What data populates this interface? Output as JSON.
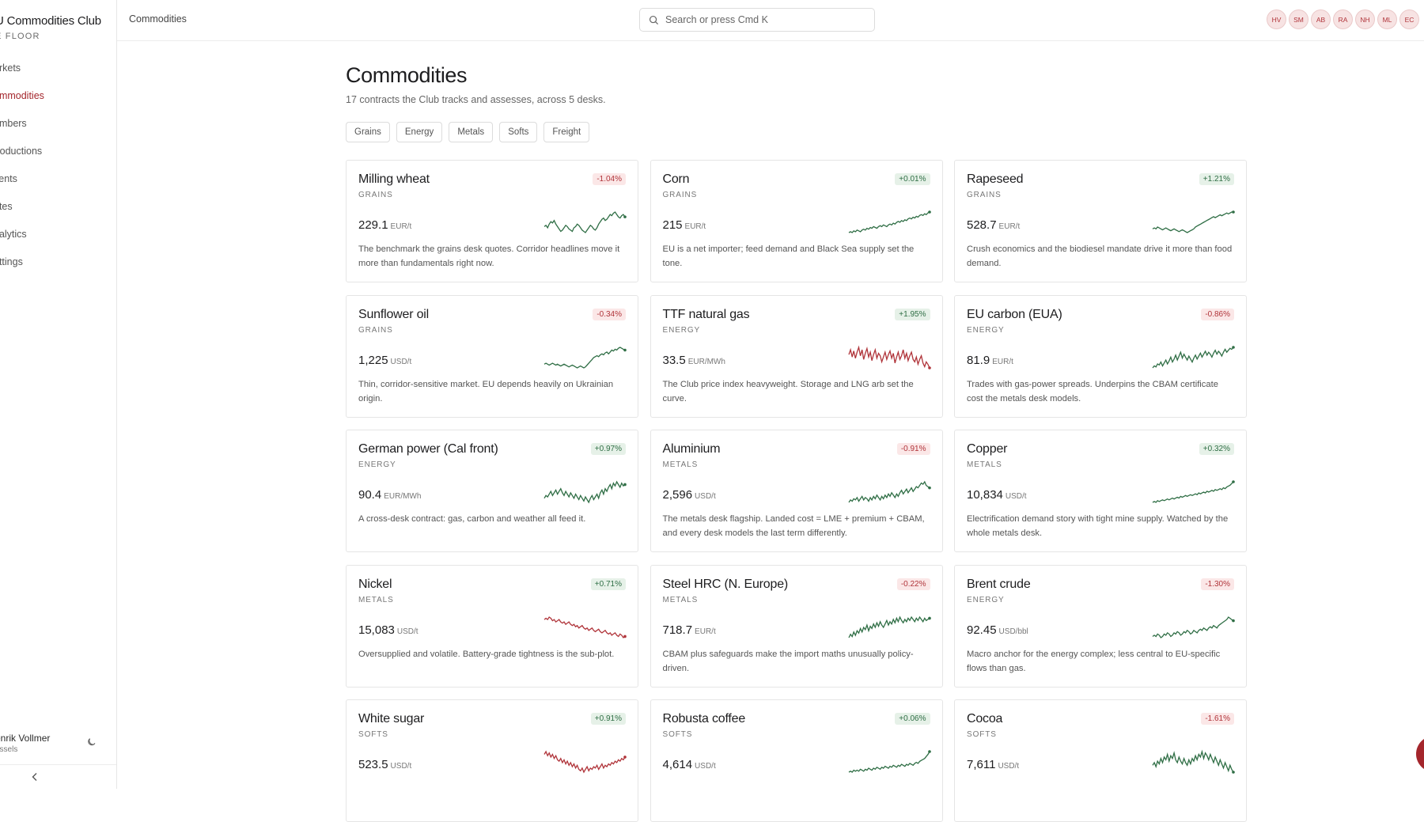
{
  "brand": {
    "title": "U Commodities Club",
    "subtitle": "E FLOOR"
  },
  "nav": [
    {
      "label": "arkets",
      "active": false
    },
    {
      "label": "ommodities",
      "active": true
    },
    {
      "label": "embers",
      "active": false
    },
    {
      "label": "troductions",
      "active": false
    },
    {
      "label": "vents",
      "active": false
    },
    {
      "label": "otes",
      "active": false
    },
    {
      "label": "nalytics",
      "active": false
    },
    {
      "label": "ettings",
      "active": false
    }
  ],
  "user": {
    "name": "enrik Vollmer",
    "location": "ussels",
    "theme_icon": "moon-icon"
  },
  "header": {
    "breadcrumb": "Commodities",
    "search_placeholder": "Search or press Cmd K",
    "avatars": [
      "HV",
      "SM",
      "AB",
      "RA",
      "NH",
      "ML",
      "EC"
    ]
  },
  "page": {
    "title": "Commodities",
    "subtitle": "17 contracts the Club tracks and assesses, across 5 desks."
  },
  "filters": [
    "Grains",
    "Energy",
    "Metals",
    "Softs",
    "Freight"
  ],
  "colors": {
    "up": "#2f6e45",
    "down": "#b0343a",
    "accent": "#a4262c"
  },
  "cards": [
    {
      "name": "Milling wheat",
      "desk": "GRAINS",
      "change": "-1.04%",
      "dir": "down",
      "price": "229.1",
      "unit": "EUR/t",
      "desc": "The benchmark the grains desk quotes. Corridor headlines move it more than fundamentals right now.",
      "spark_color": "up",
      "spark": [
        12,
        13,
        11,
        14,
        16,
        15,
        17,
        14,
        12,
        10,
        8,
        9,
        11,
        13,
        12,
        10,
        9,
        8,
        11,
        12,
        14,
        13,
        11,
        9,
        8,
        7,
        9,
        11,
        13,
        12,
        10,
        9,
        11,
        14,
        16,
        18,
        19,
        17,
        18,
        20,
        22,
        21,
        23,
        24,
        22,
        20,
        19,
        21,
        22,
        20
      ]
    },
    {
      "name": "Corn",
      "desk": "GRAINS",
      "change": "+0.01%",
      "dir": "up",
      "price": "215",
      "unit": "EUR/t",
      "desc": "EU is a net importer; feed demand and Black Sea supply set the tone.",
      "spark_color": "up",
      "spark": [
        5,
        6,
        5,
        7,
        6,
        8,
        7,
        6,
        8,
        9,
        8,
        10,
        9,
        11,
        10,
        12,
        11,
        10,
        12,
        13,
        12,
        14,
        13,
        12,
        14,
        15,
        14,
        16,
        15,
        17,
        18,
        17,
        19,
        18,
        20,
        19,
        21,
        22,
        21,
        23,
        22,
        24,
        23,
        25,
        26,
        25,
        27,
        26,
        28,
        29
      ]
    },
    {
      "name": "Rapeseed",
      "desk": "GRAINS",
      "change": "+1.21%",
      "dir": "up",
      "price": "528.7",
      "unit": "EUR/t",
      "desc": "Crush economics and the biodiesel mandate drive it more than food demand.",
      "spark_color": "up",
      "spark": [
        10,
        11,
        10,
        12,
        11,
        10,
        9,
        10,
        11,
        10,
        9,
        8,
        9,
        10,
        9,
        8,
        7,
        8,
        9,
        8,
        7,
        6,
        7,
        8,
        9,
        10,
        12,
        13,
        14,
        15,
        16,
        17,
        18,
        19,
        20,
        21,
        22,
        23,
        22,
        23,
        24,
        25,
        24,
        25,
        26,
        27,
        26,
        27,
        28,
        28
      ]
    },
    {
      "name": "Sunflower oil",
      "desk": "GRAINS",
      "change": "-0.34%",
      "dir": "down",
      "price": "1,225",
      "unit": "USD/t",
      "desc": "Thin, corridor-sensitive market. EU depends heavily on Ukrainian origin.",
      "spark_color": "up",
      "spark": [
        9,
        10,
        9,
        8,
        9,
        10,
        9,
        8,
        9,
        8,
        7,
        8,
        9,
        8,
        7,
        6,
        7,
        8,
        7,
        6,
        5,
        6,
        7,
        6,
        5,
        6,
        8,
        10,
        12,
        14,
        16,
        17,
        18,
        17,
        19,
        20,
        19,
        21,
        22,
        20,
        22,
        24,
        23,
        25,
        24,
        26,
        27,
        26,
        25,
        24
      ]
    },
    {
      "name": "TTF natural gas",
      "desk": "ENERGY",
      "change": "+1.95%",
      "dir": "up",
      "price": "33.5",
      "unit": "EUR/MWh",
      "desc": "The Club price index heavyweight. Storage and LNG arb set the curve.",
      "spark_color": "down",
      "spark": [
        20,
        24,
        18,
        23,
        17,
        22,
        26,
        19,
        24,
        16,
        21,
        25,
        18,
        22,
        15,
        20,
        24,
        17,
        21,
        19,
        14,
        18,
        22,
        16,
        20,
        23,
        17,
        21,
        13,
        18,
        22,
        16,
        19,
        24,
        17,
        21,
        15,
        19,
        22,
        16,
        14,
        18,
        12,
        16,
        19,
        13,
        10,
        14,
        12,
        9
      ]
    },
    {
      "name": "EU carbon (EUA)",
      "desk": "ENERGY",
      "change": "-0.86%",
      "dir": "down",
      "price": "81.9",
      "unit": "EUR/t",
      "desc": "Trades with gas-power spreads. Underpins the CBAM certificate cost the metals desk models.",
      "spark_color": "up",
      "spark": [
        6,
        8,
        7,
        10,
        9,
        12,
        8,
        11,
        14,
        10,
        13,
        17,
        12,
        15,
        19,
        14,
        18,
        22,
        16,
        20,
        17,
        14,
        18,
        15,
        12,
        16,
        19,
        15,
        18,
        21,
        17,
        20,
        23,
        19,
        22,
        20,
        17,
        21,
        24,
        20,
        23,
        21,
        18,
        22,
        25,
        22,
        24,
        26,
        25,
        27
      ]
    },
    {
      "name": "German power (Cal front)",
      "desk": "ENERGY",
      "change": "+0.97%",
      "dir": "up",
      "price": "90.4",
      "unit": "EUR/MWh",
      "desc": "A cross-desk contract: gas, carbon and weather all feed it.",
      "spark_color": "up",
      "spark": [
        14,
        16,
        15,
        17,
        19,
        16,
        18,
        20,
        17,
        19,
        21,
        18,
        16,
        19,
        17,
        15,
        18,
        16,
        14,
        17,
        15,
        13,
        16,
        14,
        12,
        15,
        13,
        11,
        14,
        16,
        13,
        15,
        17,
        14,
        18,
        20,
        17,
        21,
        19,
        22,
        24,
        21,
        25,
        23,
        26,
        24,
        22,
        25,
        23,
        24
      ]
    },
    {
      "name": "Aluminium",
      "desk": "METALS",
      "change": "-0.91%",
      "dir": "down",
      "price": "2,596",
      "unit": "USD/t",
      "desc": "The metals desk flagship. Landed cost = LME + premium + CBAM, and every desk models the last term differently.",
      "spark_color": "up",
      "spark": [
        8,
        10,
        9,
        11,
        10,
        12,
        9,
        11,
        13,
        10,
        12,
        11,
        9,
        12,
        10,
        13,
        11,
        14,
        12,
        10,
        13,
        11,
        14,
        12,
        15,
        13,
        16,
        14,
        12,
        15,
        13,
        16,
        18,
        15,
        17,
        19,
        16,
        18,
        20,
        17,
        19,
        21,
        20,
        22,
        24,
        23,
        25,
        22,
        21,
        20
      ]
    },
    {
      "name": "Copper",
      "desk": "METALS",
      "change": "+0.32%",
      "dir": "up",
      "price": "10,834",
      "unit": "USD/t",
      "desc": "Electrification demand story with tight mine supply. Watched by the whole metals desk.",
      "spark_color": "up",
      "spark": [
        4,
        5,
        4,
        6,
        5,
        6,
        7,
        6,
        7,
        8,
        7,
        8,
        9,
        8,
        9,
        10,
        9,
        11,
        10,
        11,
        12,
        11,
        12,
        13,
        12,
        13,
        14,
        13,
        15,
        14,
        15,
        16,
        15,
        17,
        16,
        17,
        18,
        17,
        19,
        18,
        19,
        20,
        19,
        21,
        20,
        22,
        23,
        24,
        26,
        28
      ]
    },
    {
      "name": "Nickel",
      "desk": "METALS",
      "change": "+0.71%",
      "dir": "up",
      "price": "15,083",
      "unit": "USD/t",
      "desc": "Oversupplied and volatile. Battery-grade tightness is the sub-plot.",
      "spark_color": "down",
      "spark": [
        26,
        27,
        26,
        28,
        27,
        25,
        26,
        24,
        25,
        26,
        24,
        23,
        24,
        22,
        23,
        24,
        22,
        21,
        22,
        20,
        21,
        19,
        20,
        21,
        19,
        18,
        19,
        17,
        18,
        19,
        17,
        16,
        17,
        18,
        16,
        15,
        16,
        17,
        15,
        14,
        15,
        13,
        14,
        15,
        13,
        12,
        14,
        13,
        11,
        12
      ]
    },
    {
      "name": "Steel HRC (N. Europe)",
      "desk": "METALS",
      "change": "-0.22%",
      "dir": "down",
      "price": "718.7",
      "unit": "EUR/t",
      "desc": "CBAM plus safeguards make the import maths unusually policy-driven.",
      "spark_color": "up",
      "spark": [
        8,
        11,
        9,
        13,
        10,
        14,
        12,
        16,
        13,
        17,
        15,
        19,
        14,
        18,
        16,
        20,
        17,
        21,
        18,
        22,
        19,
        17,
        20,
        23,
        19,
        22,
        20,
        24,
        21,
        25,
        22,
        26,
        23,
        21,
        24,
        22,
        25,
        23,
        26,
        24,
        22,
        25,
        23,
        26,
        24,
        22,
        25,
        23,
        24,
        25
      ]
    },
    {
      "name": "Brent crude",
      "desk": "ENERGY",
      "change": "-1.30%",
      "dir": "down",
      "price": "92.45",
      "unit": "USD/bbl",
      "desc": "Macro anchor for the energy complex; less central to EU-specific flows than gas.",
      "spark_color": "up",
      "spark": [
        10,
        11,
        10,
        12,
        11,
        9,
        10,
        12,
        11,
        13,
        12,
        10,
        11,
        13,
        12,
        14,
        13,
        11,
        12,
        14,
        13,
        15,
        14,
        12,
        13,
        15,
        14,
        13,
        15,
        16,
        15,
        17,
        16,
        15,
        17,
        18,
        17,
        19,
        18,
        17,
        19,
        20,
        21,
        22,
        23,
        24,
        26,
        25,
        24,
        23
      ]
    },
    {
      "name": "White sugar",
      "desk": "SOFTS",
      "change": "+0.91%",
      "dir": "up",
      "price": "523.5",
      "unit": "USD/t",
      "desc": "",
      "spark_color": "down",
      "spark": [
        22,
        24,
        21,
        23,
        20,
        22,
        19,
        21,
        18,
        17,
        19,
        16,
        18,
        15,
        17,
        14,
        16,
        13,
        15,
        12,
        14,
        11,
        10,
        12,
        9,
        11,
        13,
        10,
        12,
        11,
        13,
        12,
        14,
        11,
        13,
        15,
        12,
        14,
        13,
        15,
        14,
        16,
        15,
        17,
        16,
        18,
        17,
        19,
        18,
        20
      ]
    },
    {
      "name": "Robusta coffee",
      "desk": "SOFTS",
      "change": "+0.06%",
      "dir": "up",
      "price": "4,614",
      "unit": "USD/t",
      "desc": "",
      "spark_color": "up",
      "spark": [
        6,
        7,
        6,
        8,
        7,
        8,
        7,
        9,
        8,
        7,
        9,
        8,
        10,
        9,
        8,
        10,
        9,
        11,
        10,
        9,
        11,
        10,
        12,
        11,
        10,
        12,
        11,
        13,
        12,
        11,
        13,
        12,
        14,
        13,
        12,
        14,
        13,
        15,
        14,
        13,
        15,
        16,
        15,
        17,
        18,
        19,
        20,
        22,
        24,
        27
      ]
    },
    {
      "name": "Cocoa",
      "desk": "SOFTS",
      "change": "-1.61%",
      "dir": "down",
      "price": "7,611",
      "unit": "USD/t",
      "desc": "",
      "spark_color": "up",
      "spark": [
        14,
        16,
        13,
        17,
        15,
        19,
        16,
        20,
        18,
        22,
        17,
        21,
        19,
        23,
        18,
        16,
        20,
        17,
        15,
        19,
        16,
        14,
        18,
        15,
        19,
        17,
        21,
        18,
        22,
        20,
        24,
        19,
        23,
        21,
        18,
        22,
        19,
        16,
        20,
        17,
        14,
        18,
        15,
        12,
        16,
        13,
        10,
        14,
        11,
        9
      ]
    }
  ]
}
